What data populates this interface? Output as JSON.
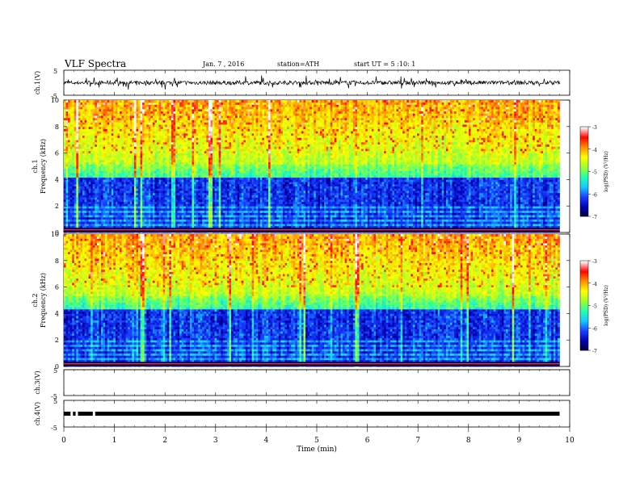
{
  "header": {
    "title": "VLF Spectra",
    "date": "Jan. 7 , 2016",
    "station": "station=ATH",
    "start": "start UT = 5 :10: 1"
  },
  "chart_data": [
    {
      "type": "line",
      "name": "ch1-waveform",
      "ylabel": "ch.1(V)",
      "ylim": [
        -5,
        5
      ],
      "yticks": [
        "5",
        "-5"
      ],
      "xlim": [
        0,
        10
      ],
      "baseline": 0,
      "noise_amplitude": 0.8,
      "spike_amplitude": 2.5
    },
    {
      "type": "heatmap",
      "name": "ch1-spectrogram",
      "ylabel": "Frequency (kHz)",
      "channel_label": "ch.1",
      "ylim": [
        0,
        10
      ],
      "yticks": [
        "0",
        "2",
        "4",
        "6",
        "8",
        "10"
      ],
      "xlim": [
        0,
        9.8
      ],
      "band_edge_khz": 4.2,
      "color_scale": {
        "label": "log(PSD) (V²/Hz)",
        "ticks": [
          "-3",
          "-4",
          "-5",
          "-6",
          "-7"
        ],
        "range": [
          -7,
          -3
        ]
      }
    },
    {
      "type": "heatmap",
      "name": "ch2-spectrogram",
      "ylabel": "Frequency (kHz)",
      "channel_label": "ch.2",
      "ylim": [
        0,
        10
      ],
      "yticks": [
        "0",
        "2",
        "4",
        "6",
        "8",
        "10"
      ],
      "xlim": [
        0,
        9.8
      ],
      "band_edge_khz": 4.4,
      "color_scale": {
        "label": "log(PSD) (V²/Hz)",
        "ticks": [
          "-3",
          "-4",
          "-5",
          "-6",
          "-7"
        ],
        "range": [
          -7,
          -3
        ]
      }
    },
    {
      "type": "line",
      "name": "ch3-waveform",
      "ylabel": "ch.3(V)",
      "ylim": [
        -5,
        5
      ],
      "yticks": [
        "5",
        "-5"
      ],
      "xlim": [
        0,
        10
      ],
      "baseline": 5
    },
    {
      "type": "line",
      "name": "ch4-waveform",
      "ylabel": "ch.4(V)",
      "ylim": [
        -5,
        5
      ],
      "yticks": [
        "5",
        "-5"
      ],
      "xlim": [
        0,
        9.8
      ],
      "baseline": 0,
      "gaps_min": [
        0.18,
        0.28,
        0.62
      ]
    }
  ],
  "x_axis": {
    "label": "Time (min)",
    "ticks": [
      "0",
      "1",
      "2",
      "3",
      "4",
      "5",
      "6",
      "7",
      "8",
      "9",
      "10"
    ]
  },
  "colors": {
    "frame": "#000000",
    "colormap": [
      "#000033",
      "#0000b0",
      "#1a3cff",
      "#18c8ff",
      "#22ffb0",
      "#a0ff30",
      "#ffff00",
      "#ff9000",
      "#ff0000",
      "#ffffff"
    ]
  }
}
